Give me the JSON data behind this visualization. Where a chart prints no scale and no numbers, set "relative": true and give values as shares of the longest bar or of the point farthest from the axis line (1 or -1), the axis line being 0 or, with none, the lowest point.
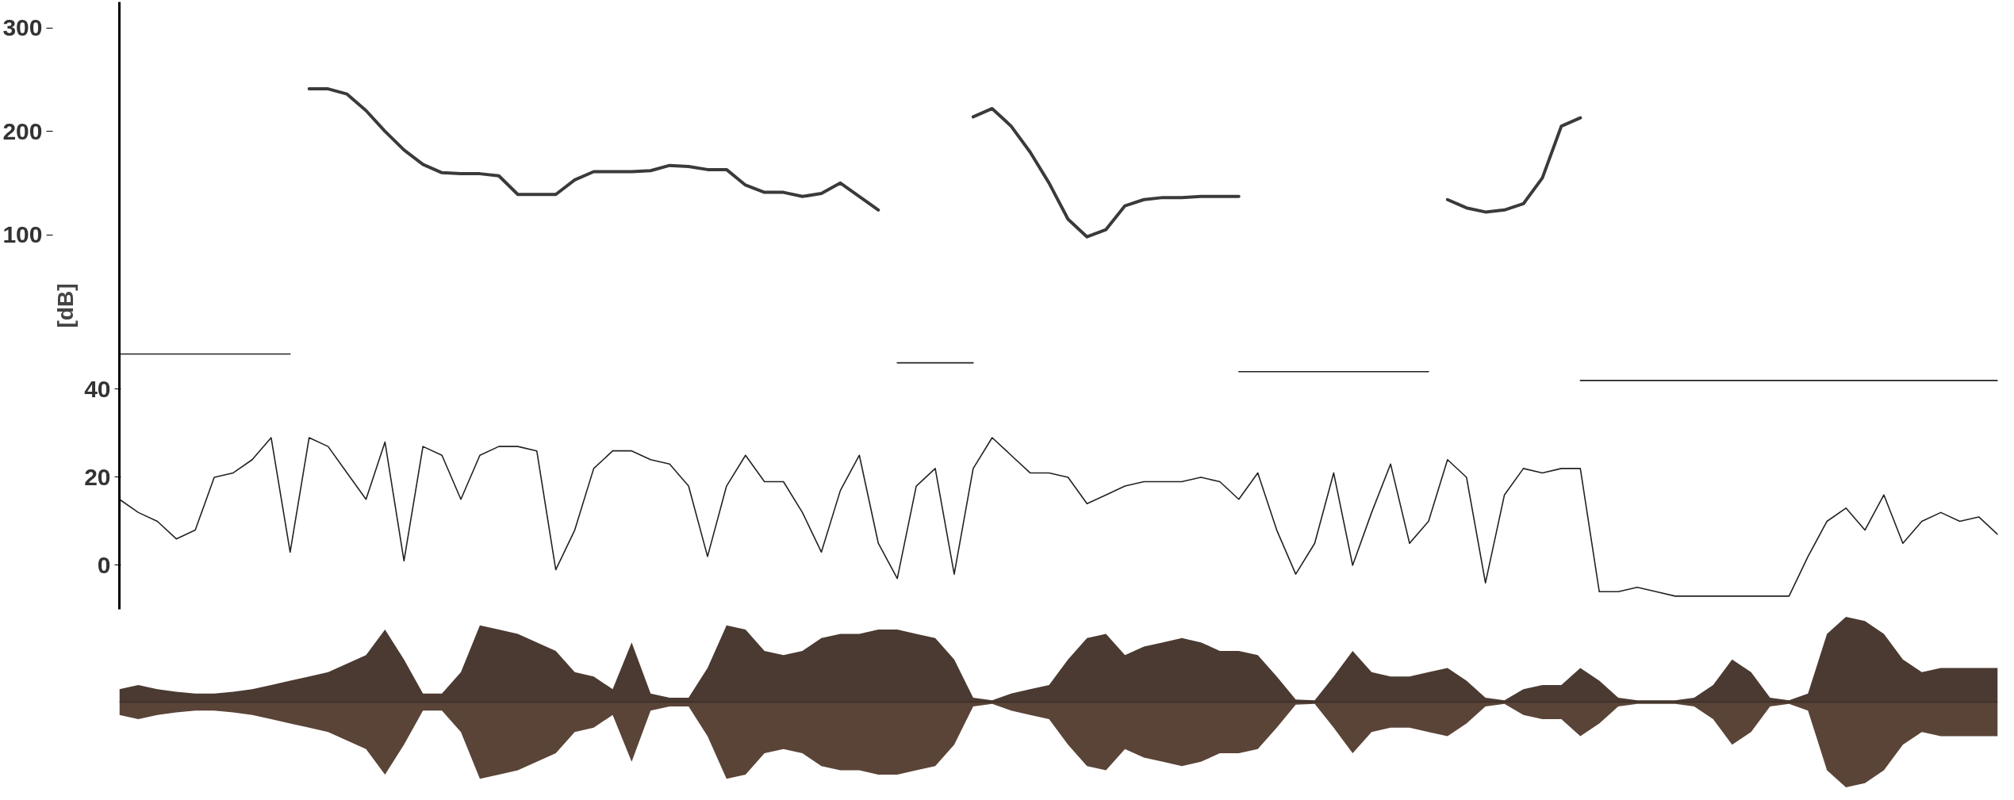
{
  "chart_data": [
    {
      "type": "line",
      "tick_labels": "y",
      "ylabel": "[dB]",
      "ylim": [
        -10,
        128
      ],
      "yticks": [
        0,
        20,
        40
      ],
      "y2lim": [
        -262,
        325
      ],
      "y2ticks": [
        100,
        200,
        300
      ],
      "categories": [
        null,
        null,
        null,
        null,
        null,
        null,
        null,
        null,
        null,
        null,
        null,
        null,
        null,
        null,
        null,
        null,
        null,
        null,
        null,
        null,
        null,
        null,
        null,
        null,
        null,
        null,
        null,
        null,
        null,
        null,
        null,
        null,
        null,
        null,
        null,
        null,
        null,
        null,
        null,
        null,
        null,
        null,
        null,
        null,
        null,
        null,
        null,
        null,
        null,
        null,
        null,
        null,
        null,
        null,
        null,
        null,
        null,
        null,
        null,
        null,
        null,
        null,
        null,
        null,
        null,
        null,
        null,
        null,
        null,
        null,
        null,
        null,
        null,
        null,
        null,
        null,
        null,
        null,
        null,
        null,
        null,
        null,
        null,
        null,
        null,
        null,
        null,
        null,
        null,
        null,
        null,
        null,
        null,
        null,
        null,
        null,
        null,
        null,
        null,
        null
      ],
      "series": [
        {
          "color": "#222222",
          "values": [
            15,
            12,
            10,
            6,
            8,
            20,
            21,
            24,
            29,
            3,
            29,
            27,
            21,
            15,
            28,
            1,
            27,
            25,
            15,
            25,
            27,
            27,
            26,
            -1,
            8,
            22,
            26,
            26,
            24,
            23,
            18,
            2,
            18,
            25,
            19,
            19,
            12,
            3,
            17,
            25,
            5,
            -3,
            18,
            22,
            -2,
            22,
            29,
            25,
            21,
            21,
            20,
            14,
            16,
            18,
            19,
            19,
            19,
            20,
            19,
            15,
            21,
            8,
            -2,
            5,
            21,
            0,
            12,
            23,
            5,
            10,
            24,
            20,
            -4,
            16,
            22,
            21,
            22,
            22,
            -6,
            -6,
            -5,
            -6,
            -7,
            -7,
            -7,
            -7,
            -7,
            -7,
            -7,
            2,
            10,
            13,
            8,
            16,
            5,
            10,
            12,
            10,
            11,
            7
          ]
        },
        {
          "color": "#222222",
          "values": [
            48,
            48,
            48,
            48,
            48,
            48,
            48,
            48,
            48,
            48,
            null,
            null,
            null,
            null,
            null,
            null,
            null,
            null,
            null,
            null,
            null,
            null,
            null,
            null,
            null,
            null,
            null,
            null,
            null,
            null,
            null,
            null,
            null,
            null,
            null,
            null,
            null,
            null,
            null,
            null,
            null,
            46,
            46,
            46,
            46,
            46,
            null,
            null,
            null,
            null,
            null,
            null,
            null,
            null,
            null,
            null,
            null,
            null,
            null,
            44,
            44,
            44,
            44,
            44,
            44,
            44,
            44,
            44,
            44,
            44,
            null,
            null,
            null,
            null,
            null,
            null,
            null,
            42,
            42,
            42,
            42,
            42,
            42,
            42,
            42,
            42,
            42,
            42,
            42,
            42,
            42,
            42,
            42,
            42,
            42,
            42,
            42,
            42,
            42,
            42
          ]
        },
        {
          "color": "#3a3a3a",
          "axis": "y2",
          "values": [
            null,
            null,
            null,
            null,
            null,
            null,
            null,
            null,
            null,
            null,
            241,
            241,
            236,
            220,
            200,
            182,
            168,
            160,
            159,
            159,
            157,
            139,
            139,
            139,
            153,
            161,
            161,
            161,
            162,
            167,
            166,
            163,
            163,
            148,
            141,
            141,
            137,
            140,
            150,
            137,
            124,
            null,
            null,
            null,
            null,
            214,
            222,
            205,
            180,
            150,
            115,
            98,
            105,
            128,
            134,
            136,
            136,
            137,
            137,
            137,
            null,
            null,
            null,
            null,
            null,
            null,
            null,
            null,
            null,
            null,
            134,
            126,
            122,
            124,
            130,
            155,
            205,
            213,
            null,
            null,
            null,
            null,
            null,
            null,
            null,
            null,
            null,
            null,
            null,
            null,
            null,
            null,
            null,
            null,
            null,
            null,
            null,
            null,
            null,
            null
          ]
        }
      ]
    },
    {
      "type": "area",
      "relative": true,
      "tick_labels": false,
      "categories": [
        null,
        null,
        null,
        null,
        null,
        null,
        null,
        null,
        null,
        null,
        null,
        null,
        null,
        null,
        null,
        null,
        null,
        null,
        null,
        null,
        null,
        null,
        null,
        null,
        null,
        null,
        null,
        null,
        null,
        null,
        null,
        null,
        null,
        null,
        null,
        null,
        null,
        null,
        null,
        null,
        null,
        null,
        null,
        null,
        null,
        null,
        null,
        null,
        null,
        null,
        null,
        null,
        null,
        null,
        null,
        null,
        null,
        null,
        null,
        null,
        null,
        null,
        null,
        null,
        null,
        null,
        null,
        null,
        null,
        null,
        null,
        null,
        null,
        null,
        null,
        null,
        null,
        null,
        null,
        null,
        null,
        null,
        null,
        null,
        null,
        null,
        null,
        null,
        null,
        null,
        null,
        null,
        null,
        null,
        null,
        null,
        null,
        null,
        null,
        null
      ],
      "series": [
        {
          "color": "#4a3a32",
          "values": [
            0.15,
            0.2,
            0.15,
            0.12,
            0.1,
            0.1,
            0.12,
            0.15,
            0.2,
            0.25,
            0.3,
            0.35,
            0.45,
            0.55,
            0.85,
            0.5,
            0.1,
            0.1,
            0.35,
            0.9,
            0.85,
            0.8,
            0.7,
            0.6,
            0.35,
            0.3,
            0.15,
            0.7,
            0.1,
            0.05,
            0.05,
            0.4,
            0.9,
            0.85,
            0.6,
            0.55,
            0.6,
            0.75,
            0.8,
            0.8,
            0.85,
            0.85,
            0.8,
            0.75,
            0.5,
            0.05,
            0.02,
            0.1,
            0.15,
            0.2,
            0.5,
            0.75,
            0.8,
            0.55,
            0.65,
            0.7,
            0.75,
            0.7,
            0.6,
            0.6,
            0.55,
            0.3,
            0.03,
            0.02,
            0.3,
            0.6,
            0.35,
            0.3,
            0.3,
            0.35,
            0.4,
            0.25,
            0.05,
            0.02,
            0.15,
            0.2,
            0.2,
            0.4,
            0.25,
            0.05,
            0.02,
            0.02,
            0.02,
            0.05,
            0.2,
            0.5,
            0.35,
            0.05,
            0.02,
            0.1,
            0.8,
            1,
            0.95,
            0.8,
            0.5,
            0.35,
            0.4,
            0.4,
            0.4,
            0.4
          ]
        },
        {
          "color": "#5a4438",
          "values": [
            -0.15,
            -0.2,
            -0.15,
            -0.12,
            -0.1,
            -0.1,
            -0.12,
            -0.15,
            -0.2,
            -0.25,
            -0.3,
            -0.35,
            -0.45,
            -0.55,
            -0.85,
            -0.5,
            -0.1,
            -0.1,
            -0.35,
            -0.9,
            -0.85,
            -0.8,
            -0.7,
            -0.6,
            -0.35,
            -0.3,
            -0.15,
            -0.7,
            -0.1,
            -0.05,
            -0.05,
            -0.4,
            -0.9,
            -0.85,
            -0.6,
            -0.55,
            -0.6,
            -0.75,
            -0.8,
            -0.8,
            -0.85,
            -0.85,
            -0.8,
            -0.75,
            -0.5,
            -0.05,
            -0.02,
            -0.1,
            -0.15,
            -0.2,
            -0.5,
            -0.75,
            -0.8,
            -0.55,
            -0.65,
            -0.7,
            -0.75,
            -0.7,
            -0.6,
            -0.6,
            -0.55,
            -0.3,
            -0.03,
            -0.02,
            -0.3,
            -0.6,
            -0.35,
            -0.3,
            -0.3,
            -0.35,
            -0.4,
            -0.25,
            -0.05,
            -0.02,
            -0.15,
            -0.2,
            -0.2,
            -0.4,
            -0.25,
            -0.05,
            -0.02,
            -0.02,
            -0.02,
            -0.05,
            -0.2,
            -0.5,
            -0.35,
            -0.05,
            -0.02,
            -0.1,
            -0.8,
            -1,
            -0.95,
            -0.8,
            -0.5,
            -0.35,
            -0.4,
            -0.4,
            -0.4,
            -0.4
          ]
        }
      ]
    }
  ]
}
